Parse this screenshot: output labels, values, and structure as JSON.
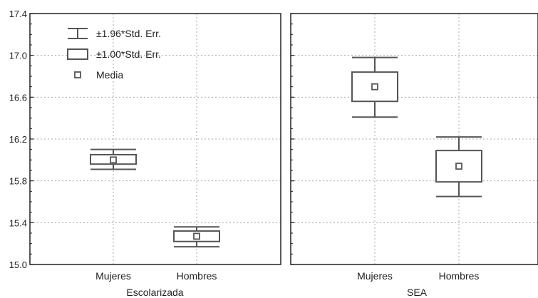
{
  "chart_data": {
    "type": "box",
    "ylim": [
      15.0,
      17.4
    ],
    "yticks": [
      "15.0",
      "15.4",
      "15.8",
      "16.2",
      "16.6",
      "17.0",
      "17.4"
    ],
    "grid": true,
    "legend": {
      "position": "top-left",
      "entries": [
        {
          "symbol": "whisker",
          "label": "±1.96*Std. Err."
        },
        {
          "symbol": "box",
          "label": "±1.00*Std. Err."
        },
        {
          "symbol": "point",
          "label": "Media"
        }
      ]
    },
    "panels": [
      {
        "group": "Escolarizada",
        "categories": [
          "Mujeres",
          "Hombres"
        ],
        "series": [
          {
            "category": "Mujeres",
            "mean": 16.0,
            "box": [
              15.96,
              16.05
            ],
            "whisker": [
              15.91,
              16.1
            ]
          },
          {
            "category": "Hombres",
            "mean": 15.27,
            "box": [
              15.22,
              15.32
            ],
            "whisker": [
              15.17,
              15.36
            ]
          }
        ]
      },
      {
        "group": "SEA",
        "categories": [
          "Mujeres",
          "Hombres"
        ],
        "series": [
          {
            "category": "Mujeres",
            "mean": 16.7,
            "box": [
              16.56,
              16.84
            ],
            "whisker": [
              16.41,
              16.98
            ]
          },
          {
            "category": "Hombres",
            "mean": 15.94,
            "box": [
              15.79,
              16.09
            ],
            "whisker": [
              15.65,
              16.22
            ]
          }
        ]
      }
    ],
    "colors": {
      "stroke": "#555555",
      "grid": "#aaaaaa",
      "frame": "#222222"
    }
  }
}
